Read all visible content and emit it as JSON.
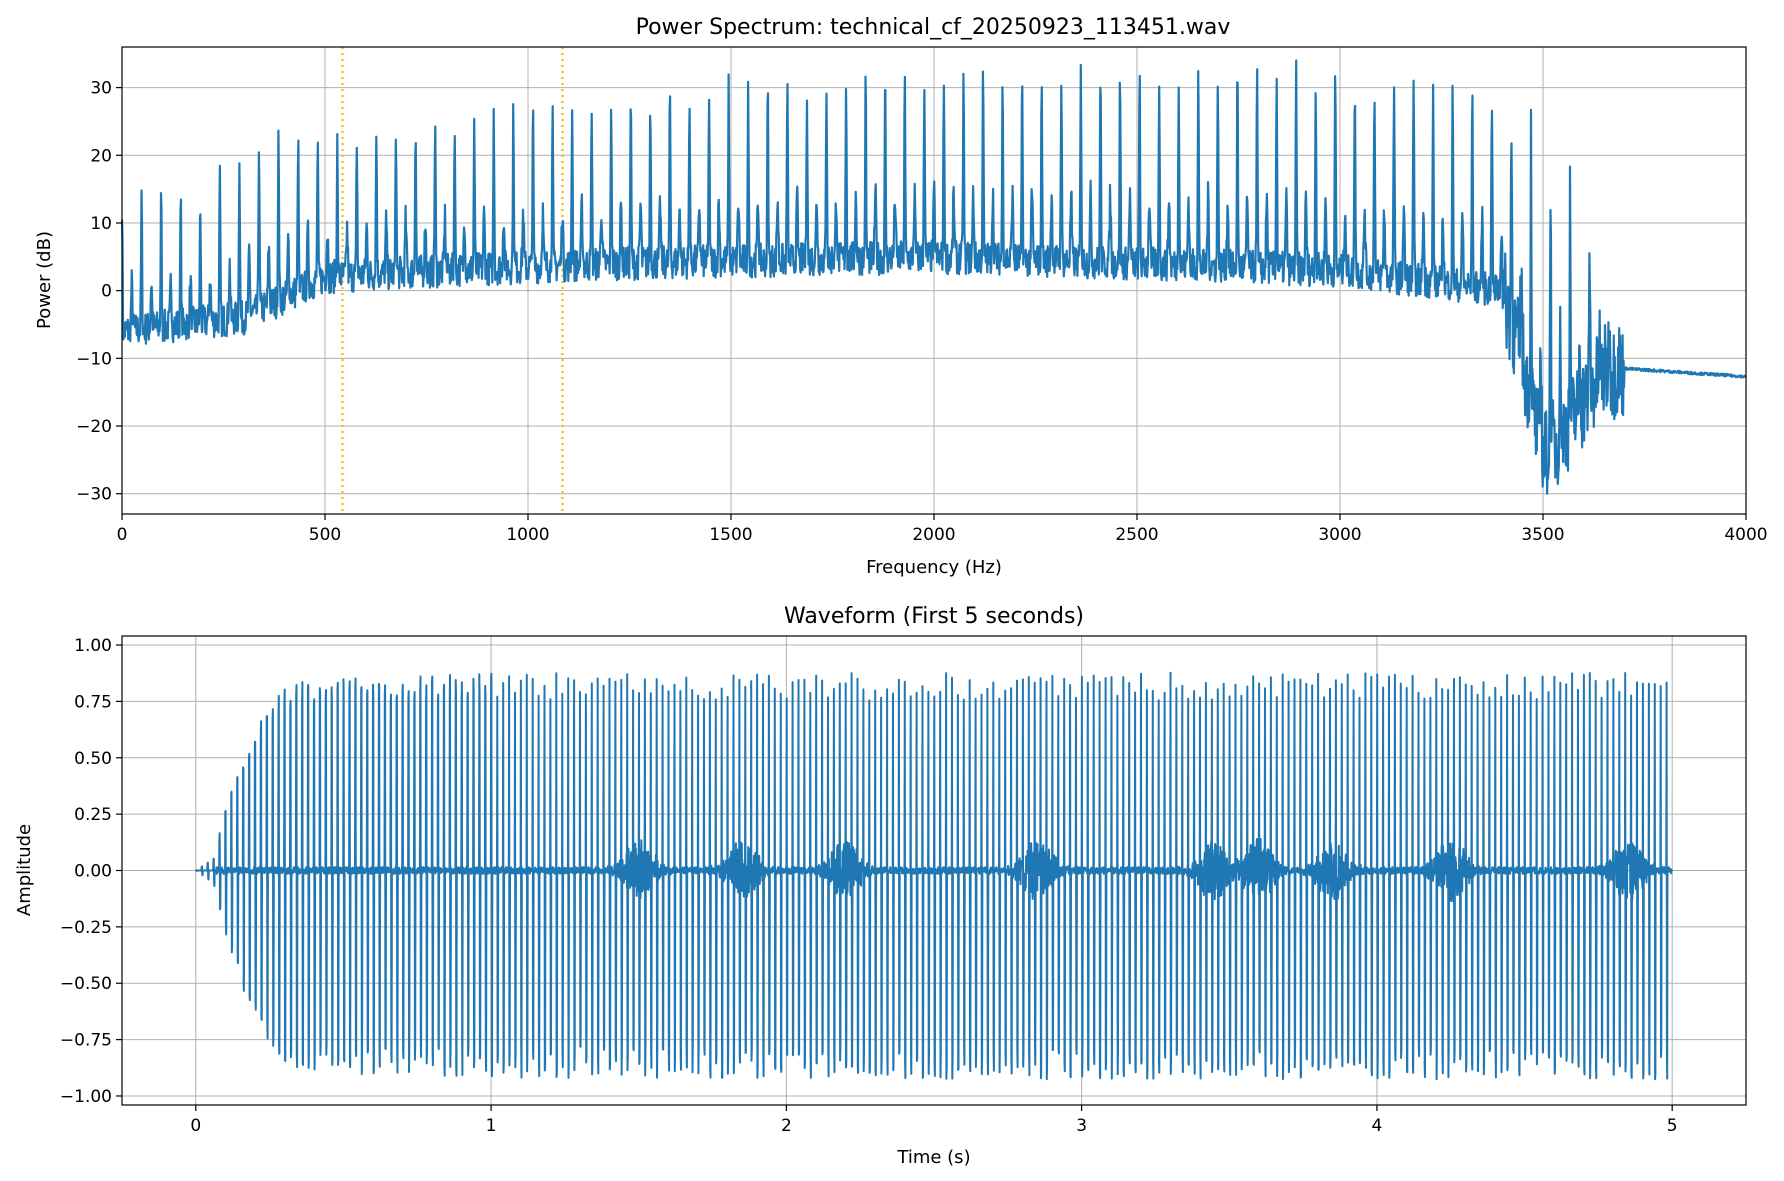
{
  "chart_data": [
    {
      "type": "line",
      "title": "Power Spectrum: technical_cf_20250923_113451.wav",
      "xlabel": "Frequency (Hz)",
      "ylabel": "Power (dB)",
      "xlim": [
        0,
        4000
      ],
      "ylim": [
        -33,
        36
      ],
      "grid": true,
      "xticks": [
        0,
        500,
        1000,
        1500,
        2000,
        2500,
        3000,
        3500,
        4000
      ],
      "yticks": [
        -30,
        -20,
        -10,
        0,
        10,
        20,
        30
      ],
      "xtick_labels": [
        "0",
        "500",
        "1000",
        "1500",
        "2000",
        "2500",
        "3000",
        "3500",
        "4000"
      ],
      "ytick_labels": [
        "−30",
        "−20",
        "−10",
        "0",
        "10",
        "20",
        "30"
      ],
      "line_color": "#1f77b4",
      "reference_lines": [
        {
          "x": 543,
          "color": "#f5b800",
          "style": "dotted"
        },
        {
          "x": 1085,
          "color": "#f5b800",
          "style": "dotted"
        }
      ],
      "series": [
        {
          "harmonic_spacing_hz": 48.2,
          "peak_envelope_db": [
            [
              0,
              13
            ],
            [
              50,
              14
            ],
            [
              100,
              14
            ],
            [
              200,
              13
            ],
            [
              290,
              21
            ],
            [
              340,
              23
            ],
            [
              400,
              23
            ],
            [
              550,
              22
            ],
            [
              700,
              25
            ],
            [
              900,
              26
            ],
            [
              1100,
              28
            ],
            [
              1300,
              29
            ],
            [
              1500,
              30
            ],
            [
              1800,
              31
            ],
            [
              2200,
              32
            ],
            [
              2600,
              32.5
            ],
            [
              3000,
              32
            ],
            [
              3300,
              30
            ],
            [
              3390,
              30
            ],
            [
              3440,
              24
            ],
            [
              3490,
              21
            ],
            [
              3550,
              16
            ],
            [
              3610,
              8
            ],
            [
              3680,
              -8
            ]
          ],
          "floor_envelope_db": [
            [
              0,
              -6
            ],
            [
              300,
              -4
            ],
            [
              500,
              2
            ],
            [
              800,
              3
            ],
            [
              1200,
              4
            ],
            [
              2000,
              5
            ],
            [
              3000,
              3
            ],
            [
              3400,
              0
            ],
            [
              3450,
              -10
            ],
            [
              3500,
              -25
            ],
            [
              3650,
              -12
            ]
          ],
          "tail_db": [
            [
              3700,
              -11.5
            ],
            [
              4000,
              -12.7
            ]
          ]
        }
      ]
    },
    {
      "type": "line",
      "title": "Waveform (First 5 seconds)",
      "xlabel": "Time (s)",
      "ylabel": "Amplitude",
      "xlim": [
        -0.25,
        5.25
      ],
      "ylim": [
        -1.04,
        1.04
      ],
      "grid": true,
      "xticks": [
        0,
        1,
        2,
        3,
        4,
        5
      ],
      "yticks": [
        -1.0,
        -0.75,
        -0.5,
        -0.25,
        0.0,
        0.25,
        0.5,
        0.75,
        1.0
      ],
      "xtick_labels": [
        "0",
        "1",
        "2",
        "3",
        "4",
        "5"
      ],
      "ytick_labels": [
        "−1.00",
        "−0.75",
        "−0.50",
        "−0.25",
        "0.00",
        "0.25",
        "0.50",
        "0.75",
        "1.00"
      ],
      "line_color": "#1f77b4",
      "series": [
        {
          "t_start": 0,
          "t_end": 5,
          "pulse_rate_per_s": 50,
          "attack_envelope": [
            [
              0,
              0
            ],
            [
              0.06,
              0.05
            ],
            [
              0.12,
              0.35
            ],
            [
              0.2,
              0.6
            ],
            [
              0.3,
              0.77
            ],
            [
              0.45,
              0.8
            ],
            [
              1.0,
              0.82
            ],
            [
              5.0,
              0.82
            ]
          ],
          "dense_bursts_s": [
            1.5,
            1.85,
            2.2,
            2.85,
            3.45,
            3.6,
            3.85,
            4.25,
            4.85
          ]
        }
      ]
    }
  ]
}
